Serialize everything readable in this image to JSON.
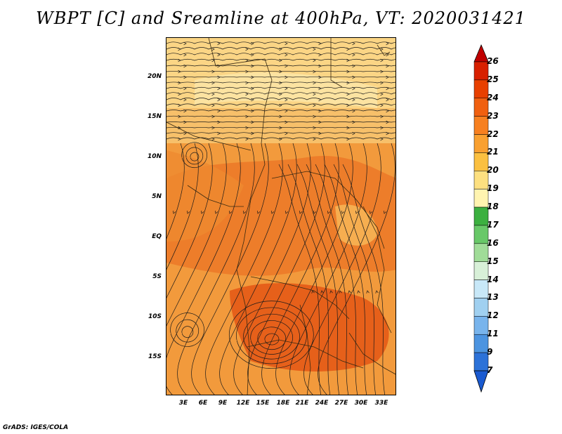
{
  "title": "WBPT [C] and Sreamline at 400hPa, VT: 2020031421",
  "footer": "GrADS: IGES/COLA",
  "lat_labels": [
    "20N",
    "15N",
    "10N",
    "5N",
    "EQ",
    "5S",
    "10S",
    "15S"
  ],
  "lon_labels": [
    "3E",
    "6E",
    "9E",
    "12E",
    "15E",
    "18E",
    "21E",
    "24E",
    "27E",
    "30E",
    "33E"
  ],
  "colorbar": {
    "labels": [
      "26",
      "25",
      "24",
      "23",
      "22",
      "21",
      "20",
      "19",
      "18",
      "17",
      "16",
      "15",
      "14",
      "13",
      "12",
      "11",
      "9",
      "7"
    ],
    "colors": [
      "#c00000",
      "#d82000",
      "#e84000",
      "#f06010",
      "#f78020",
      "#f9a030",
      "#fbc040",
      "#fde080",
      "#fff4b0",
      "#3cb040",
      "#68c868",
      "#a0dc98",
      "#d8f0d8",
      "#c8e8f8",
      "#a0d0f0",
      "#78b4ec",
      "#4c94e0",
      "#2c72d8",
      "#1a5ad0"
    ]
  },
  "map_colors": {
    "light": "#fbd585",
    "mid": "#f7b657",
    "warm": "#f29a3c",
    "hot": "#ec7a28",
    "hotter": "#e45a16"
  }
}
